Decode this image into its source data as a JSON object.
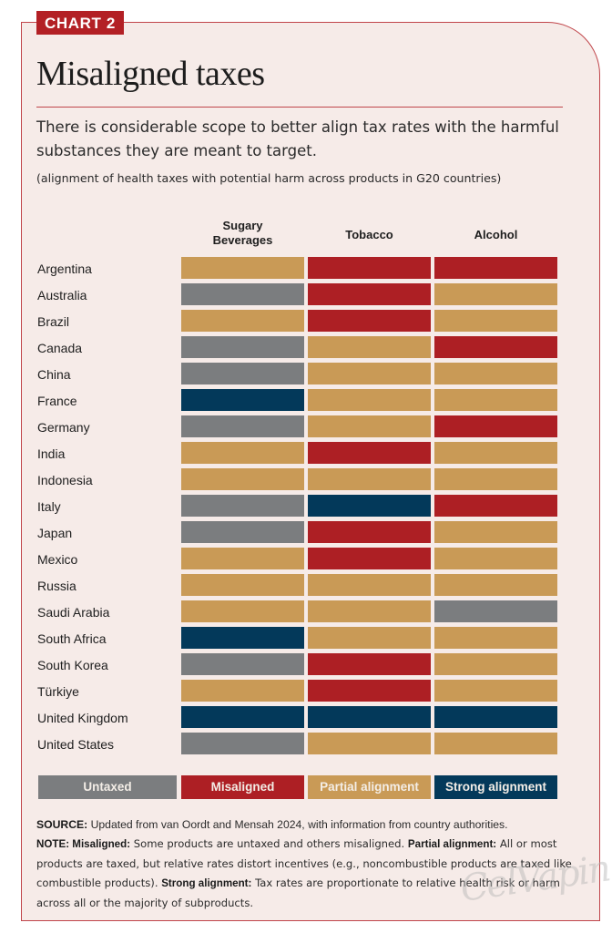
{
  "header": {
    "tag": "CHART 2",
    "title": "Misaligned taxes",
    "subtitle": "There is considerable scope to better align tax rates with the harmful substances they are meant to target.",
    "subnote": "(alignment of health taxes with potential harm across products in G20 countries)"
  },
  "colors": {
    "Untaxed": "#7b7d7f",
    "Misaligned": "#ad1f24",
    "Partial alignment": "#c99a56",
    "Strong alignment": "#03395a",
    "panel_bg": "#f6ebe8",
    "accent": "#b32025"
  },
  "chart_data": {
    "type": "heatmap",
    "title": "Misaligned taxes",
    "subtitle": "(alignment of health taxes with potential harm across products in G20 countries)",
    "columns": [
      "Sugary Beverages",
      "Tobacco",
      "Alcohol"
    ],
    "column_labels": [
      [
        "Sugary",
        "Beverages"
      ],
      [
        "Tobacco"
      ],
      [
        "Alcohol"
      ]
    ],
    "categories_legend": [
      "Untaxed",
      "Misaligned",
      "Partial alignment",
      "Strong alignment"
    ],
    "legend_position": "bottom",
    "rows": [
      {
        "country": "Argentina",
        "values": [
          "Partial alignment",
          "Misaligned",
          "Misaligned"
        ]
      },
      {
        "country": "Australia",
        "values": [
          "Untaxed",
          "Misaligned",
          "Partial alignment"
        ]
      },
      {
        "country": "Brazil",
        "values": [
          "Partial alignment",
          "Misaligned",
          "Partial alignment"
        ]
      },
      {
        "country": "Canada",
        "values": [
          "Untaxed",
          "Partial alignment",
          "Misaligned"
        ]
      },
      {
        "country": "China",
        "values": [
          "Untaxed",
          "Partial alignment",
          "Partial alignment"
        ]
      },
      {
        "country": "France",
        "values": [
          "Strong alignment",
          "Partial alignment",
          "Partial alignment"
        ]
      },
      {
        "country": "Germany",
        "values": [
          "Untaxed",
          "Partial alignment",
          "Misaligned"
        ]
      },
      {
        "country": "India",
        "values": [
          "Partial alignment",
          "Misaligned",
          "Partial alignment"
        ]
      },
      {
        "country": "Indonesia",
        "values": [
          "Partial alignment",
          "Partial alignment",
          "Partial alignment"
        ]
      },
      {
        "country": "Italy",
        "values": [
          "Untaxed",
          "Strong alignment",
          "Misaligned"
        ]
      },
      {
        "country": "Japan",
        "values": [
          "Untaxed",
          "Misaligned",
          "Partial alignment"
        ]
      },
      {
        "country": "Mexico",
        "values": [
          "Partial alignment",
          "Misaligned",
          "Partial alignment"
        ]
      },
      {
        "country": "Russia",
        "values": [
          "Partial alignment",
          "Partial alignment",
          "Partial alignment"
        ]
      },
      {
        "country": "Saudi Arabia",
        "values": [
          "Partial alignment",
          "Partial alignment",
          "Untaxed"
        ]
      },
      {
        "country": "South Africa",
        "values": [
          "Strong alignment",
          "Partial alignment",
          "Partial alignment"
        ]
      },
      {
        "country": "South Korea",
        "values": [
          "Untaxed",
          "Misaligned",
          "Partial alignment"
        ]
      },
      {
        "country": "Türkiye",
        "values": [
          "Partial alignment",
          "Misaligned",
          "Partial alignment"
        ]
      },
      {
        "country": "United Kingdom",
        "values": [
          "Strong alignment",
          "Strong alignment",
          "Strong alignment"
        ]
      },
      {
        "country": "United States",
        "values": [
          "Untaxed",
          "Partial alignment",
          "Partial alignment"
        ]
      }
    ]
  },
  "legend": {
    "items": [
      "Untaxed",
      "Misaligned",
      "Partial alignment",
      "Strong alignment"
    ]
  },
  "footer": {
    "source_label": "SOURCE:",
    "source_text": " Updated from van Oordt and Mensah 2024, with information from country authorities.",
    "note_label": "NOTE:",
    "note_parts": [
      {
        "bold": true,
        "text": " Misaligned:"
      },
      {
        "bold": false,
        "text": " Some products are untaxed and others misaligned. "
      },
      {
        "bold": true,
        "text": "Partial alignment:"
      },
      {
        "bold": false,
        "text": " All or most products are taxed, but relative rates distort incentives (e.g., noncombustible products are taxed like combustible products).  "
      },
      {
        "bold": true,
        "text": "Strong alignment:"
      },
      {
        "bold": false,
        "text": " Tax rates are proportionate to relative health risk or harm across all or the majority of subproducts."
      }
    ]
  },
  "watermark": "CelVaping"
}
